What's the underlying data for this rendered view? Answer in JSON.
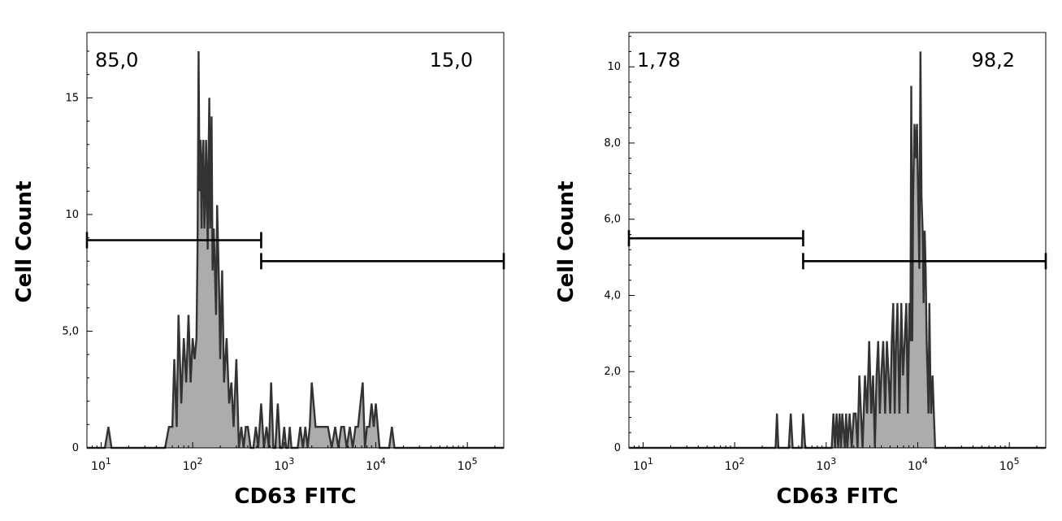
{
  "chart_data": [
    {
      "type": "area",
      "xlabel": "CD63 FITC",
      "ylabel": "Cell Count",
      "xscale": "log",
      "xlim": [
        7,
        250000
      ],
      "ylim": [
        0,
        17.8
      ],
      "x_ticks": [
        {
          "value": 10,
          "base": "10",
          "exp": "1"
        },
        {
          "value": 100,
          "base": "10",
          "exp": "2"
        },
        {
          "value": 1000,
          "base": "10",
          "exp": "3"
        },
        {
          "value": 10000,
          "base": "10",
          "exp": "4"
        },
        {
          "value": 100000,
          "base": "10",
          "exp": "5"
        }
      ],
      "y_ticks": [
        {
          "value": 0,
          "label": "0"
        },
        {
          "value": 5,
          "label": "5,0"
        },
        {
          "value": 10,
          "label": "10"
        },
        {
          "value": 15,
          "label": "15"
        }
      ],
      "gates": [
        {
          "label": "85,0",
          "label_pos": "top-left",
          "x_range": [
            7,
            560
          ],
          "y": 8.9
        },
        {
          "label": "15,0",
          "label_pos": "top-right",
          "x_range": [
            560,
            250000
          ],
          "y": 8.0
        }
      ],
      "histogram": {
        "x": [
          7,
          11,
          12,
          13,
          33,
          35,
          50,
          55,
          60,
          63,
          67,
          70,
          75,
          80,
          85,
          90,
          95,
          100,
          105,
          110,
          113,
          116,
          119,
          122,
          125,
          128,
          131,
          134,
          137,
          140,
          143,
          146,
          149,
          152,
          155,
          158,
          161,
          165,
          170,
          175,
          180,
          185,
          190,
          195,
          200,
          210,
          220,
          235,
          250,
          265,
          280,
          300,
          320,
          340,
          360,
          380,
          400,
          430,
          460,
          490,
          520,
          560,
          600,
          640,
          680,
          720,
          760,
          800,
          850,
          900,
          950,
          1000,
          1050,
          1100,
          1150,
          1200,
          1300,
          1400,
          1500,
          1600,
          1700,
          1800,
          1900,
          2000,
          2200,
          2400,
          2600,
          2800,
          3000,
          3300,
          3600,
          3900,
          4200,
          4500,
          4800,
          5200,
          5600,
          6000,
          6400,
          6800,
          7200,
          7600,
          8000,
          8500,
          9000,
          9500,
          10000,
          11000,
          12000,
          13000,
          14000,
          15000,
          16000,
          17000,
          20000,
          250000
        ],
        "values": [
          0,
          0,
          0.9,
          0,
          0,
          0,
          0,
          0.9,
          0.9,
          3.8,
          0.9,
          5.7,
          1.9,
          4.7,
          2.8,
          5.7,
          2.8,
          4.7,
          3.8,
          4.7,
          8.5,
          17,
          11,
          13.2,
          9.4,
          12.3,
          13.2,
          9.4,
          10.4,
          13.2,
          11.3,
          8.5,
          12.3,
          15,
          9.4,
          11.3,
          14.2,
          7.6,
          9.4,
          7.6,
          5.7,
          10.4,
          8.5,
          6.6,
          3.8,
          7.6,
          2.8,
          4.7,
          1.9,
          2.8,
          0.9,
          3.8,
          0,
          0.9,
          0,
          0.9,
          0.9,
          0,
          0,
          0.9,
          0,
          1.9,
          0,
          0.9,
          0,
          2.8,
          0,
          0,
          1.9,
          0,
          0,
          0.9,
          0,
          0,
          0.9,
          0,
          0,
          0,
          0.9,
          0,
          0.9,
          0,
          0.9,
          2.8,
          0.9,
          0.9,
          0.9,
          0.9,
          0.9,
          0,
          0.9,
          0,
          0.9,
          0.9,
          0,
          0.9,
          0,
          0.9,
          0.9,
          1.9,
          2.8,
          0,
          0.9,
          0.9,
          1.9,
          0.9,
          1.9,
          0,
          0,
          0,
          0,
          0.9,
          0,
          0,
          0,
          0
        ]
      }
    },
    {
      "type": "area",
      "xlabel": "CD63 FITC",
      "ylabel": "Cell Count",
      "xscale": "log",
      "xlim": [
        7,
        250000
      ],
      "ylim": [
        0,
        10.9
      ],
      "x_ticks": [
        {
          "value": 10,
          "base": "10",
          "exp": "1"
        },
        {
          "value": 100,
          "base": "10",
          "exp": "2"
        },
        {
          "value": 1000,
          "base": "10",
          "exp": "3"
        },
        {
          "value": 10000,
          "base": "10",
          "exp": "4"
        },
        {
          "value": 100000,
          "base": "10",
          "exp": "5"
        }
      ],
      "y_ticks": [
        {
          "value": 0,
          "label": "0"
        },
        {
          "value": 2,
          "label": "2,0"
        },
        {
          "value": 4,
          "label": "4,0"
        },
        {
          "value": 6,
          "label": "6,0"
        },
        {
          "value": 8,
          "label": "8,0"
        },
        {
          "value": 10,
          "label": "10"
        }
      ],
      "gates": [
        {
          "label": "1,78",
          "label_pos": "top-left",
          "x_range": [
            7,
            560
          ],
          "y": 5.5
        },
        {
          "label": "98,2",
          "label_pos": "top-right",
          "x_range": [
            560,
            250000
          ],
          "y": 4.9
        }
      ],
      "histogram": {
        "x": [
          7,
          280,
          290,
          300,
          320,
          390,
          410,
          430,
          540,
          560,
          590,
          1150,
          1200,
          1250,
          1300,
          1350,
          1400,
          1450,
          1500,
          1600,
          1650,
          1700,
          1800,
          1900,
          2000,
          2100,
          2200,
          2300,
          2400,
          2500,
          2650,
          2800,
          2950,
          3100,
          3250,
          3400,
          3550,
          3700,
          3850,
          4000,
          4200,
          4400,
          4600,
          4800,
          5000,
          5200,
          5400,
          5600,
          5800,
          6000,
          6300,
          6600,
          6900,
          7200,
          7500,
          7800,
          8100,
          8300,
          8500,
          8700,
          8900,
          9200,
          9500,
          9800,
          10100,
          10400,
          10700,
          11000,
          11300,
          11600,
          11900,
          12200,
          12500,
          12800,
          13100,
          13400,
          13700,
          14000,
          14500,
          15000,
          15500,
          16000,
          16500,
          17000,
          17500,
          18000,
          18500,
          19000,
          19500,
          20000,
          21000,
          23000,
          25000,
          250000
        ],
        "values": [
          0,
          0,
          0.9,
          0,
          0,
          0,
          0.9,
          0,
          0,
          0.9,
          0,
          0,
          0.9,
          0,
          0.9,
          0,
          0.9,
          0,
          0.9,
          0,
          0.9,
          0,
          0.9,
          0,
          0.9,
          0.9,
          0,
          1.9,
          0.9,
          0,
          1.9,
          0.9,
          2.8,
          0.9,
          1.9,
          0,
          1.9,
          2.8,
          0.9,
          1.9,
          2.8,
          0.9,
          2.8,
          1.9,
          0.9,
          2.8,
          3.8,
          0.9,
          2.8,
          3.8,
          0.9,
          3.8,
          1.9,
          2.8,
          3.8,
          0.9,
          3.8,
          2.8,
          9.5,
          2.8,
          6.6,
          8.5,
          7.6,
          8.5,
          6.6,
          4.7,
          10.4,
          6.6,
          5.7,
          3.8,
          5.7,
          4.7,
          2.8,
          1.9,
          0.9,
          3.8,
          1.9,
          0.9,
          1.9,
          0.9,
          0,
          0,
          0,
          0,
          0,
          0,
          0,
          0,
          0,
          0,
          0,
          0,
          0,
          0
        ]
      }
    }
  ]
}
